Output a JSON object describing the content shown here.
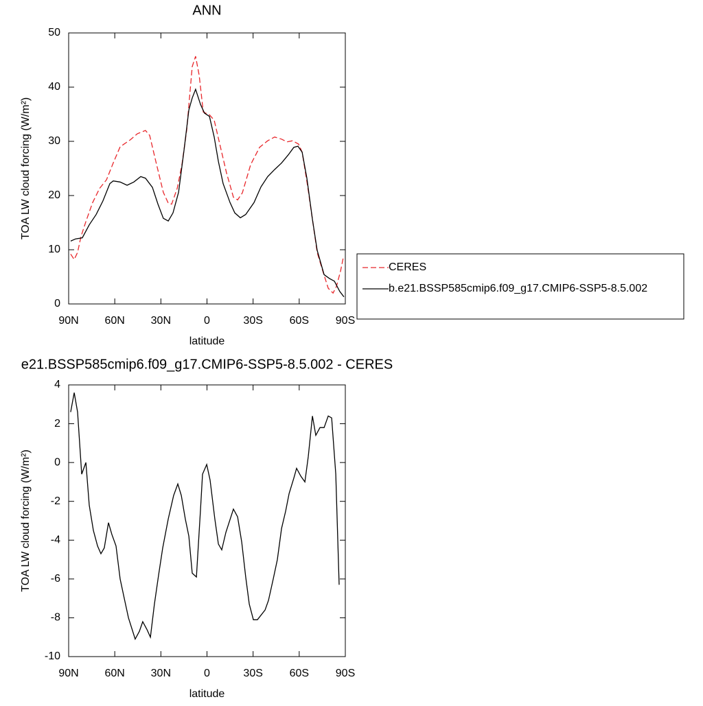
{
  "chart_data": [
    {
      "type": "line",
      "title": "ANN",
      "xlabel": "latitude",
      "ylabel": "TOA LW cloud forcing (W/m²)",
      "xlim": [
        90,
        -90
      ],
      "xticks": [
        {
          "value": 90,
          "label": "90N"
        },
        {
          "value": 60,
          "label": "60N"
        },
        {
          "value": 30,
          "label": "30N"
        },
        0,
        {
          "value": -30,
          "label": "30S"
        },
        {
          "value": -60,
          "label": "60S"
        },
        {
          "value": -90,
          "label": "90S"
        }
      ],
      "ylim": [
        0,
        50
      ],
      "yticks": [
        0,
        10,
        20,
        30,
        40,
        50
      ],
      "legend": "right",
      "series": [
        {
          "name": "CERES",
          "color": "#e8262a",
          "line_style": "dashed",
          "x": [
            88.7,
            86.4,
            84.2,
            82.0,
            78.8,
            74.4,
            69.9,
            65.4,
            61.0,
            56.5,
            49.8,
            45.3,
            40.0,
            37.3,
            32.8,
            28.4,
            25.2,
            23.0,
            19.4,
            16.3,
            13.2,
            9.6,
            7.4,
            5.1,
            2.4,
            -1.6,
            -4.7,
            -8.3,
            -12.7,
            -17.2,
            -19.9,
            -23.0,
            -28.4,
            -34.2,
            -39.5,
            -44.0,
            -48.5,
            -52.0,
            -55.6,
            -59.6,
            -61.9,
            -65.4,
            -68.6,
            -71.7,
            -75.3,
            -78.9,
            -82.0,
            -84.2,
            -86.9,
            -88.7
          ],
          "values": [
            9.2,
            8.2,
            9.5,
            12.4,
            15.2,
            18.7,
            21.3,
            22.9,
            26.0,
            29.0,
            30.3,
            31.4,
            32.0,
            31.1,
            25.7,
            20.6,
            18.6,
            18.4,
            21.3,
            25.7,
            32.0,
            43.8,
            45.7,
            42.2,
            35.4,
            34.9,
            33.9,
            29.5,
            24.2,
            19.7,
            19.2,
            20.5,
            25.7,
            28.9,
            30.1,
            30.8,
            30.4,
            29.9,
            30.1,
            29.5,
            28.0,
            21.9,
            15.6,
            9.5,
            6.1,
            2.9,
            2.0,
            3.2,
            6.1,
            8.6
          ]
        },
        {
          "name": "b.e21.BSSP585cmip6.f09_g17.CMIP6-SSP5-8.5.002",
          "color": "#000000",
          "line_style": "solid",
          "x": [
            88.7,
            85.5,
            81.1,
            76.6,
            72.1,
            67.7,
            63.2,
            61.0,
            56.5,
            52.0,
            47.6,
            43.1,
            40.0,
            35.5,
            31.9,
            28.4,
            25.2,
            22.1,
            18.5,
            15.0,
            11.8,
            9.6,
            7.4,
            4.2,
            1.6,
            -1.6,
            -4.7,
            -7.4,
            -10.5,
            -15.0,
            -18.1,
            -21.7,
            -25.2,
            -30.6,
            -35.1,
            -39.5,
            -44.0,
            -48.5,
            -52.9,
            -56.5,
            -59.2,
            -61.9,
            -65.0,
            -68.6,
            -71.7,
            -76.2,
            -79.7,
            -82.9,
            -86.4,
            -89.1
          ],
          "values": [
            11.6,
            12.0,
            12.2,
            14.6,
            16.5,
            19.0,
            22.2,
            22.7,
            22.5,
            21.9,
            22.5,
            23.5,
            23.2,
            21.5,
            18.4,
            15.8,
            15.3,
            16.8,
            20.6,
            28.2,
            35.8,
            38.0,
            39.6,
            36.8,
            35.2,
            34.6,
            30.8,
            26.3,
            22.2,
            18.7,
            16.8,
            15.9,
            16.5,
            18.7,
            21.6,
            23.5,
            24.8,
            26.0,
            27.5,
            28.9,
            29.1,
            28.0,
            23.2,
            15.6,
            9.9,
            5.4,
            4.7,
            4.2,
            2.3,
            1.3
          ]
        }
      ]
    },
    {
      "type": "line",
      "title": "e21.BSSP585cmip6.f09_g17.CMIP6-SSP5-8.5.002 - CERES",
      "xlabel": "latitude",
      "ylabel": "TOA LW cloud forcing (W/m²)",
      "xlim": [
        90,
        -90
      ],
      "xticks": [
        {
          "value": 90,
          "label": "90N"
        },
        {
          "value": 60,
          "label": "60N"
        },
        {
          "value": 30,
          "label": "30N"
        },
        0,
        {
          "value": -30,
          "label": "30S"
        },
        {
          "value": -60,
          "label": "60S"
        },
        {
          "value": -90,
          "label": "90S"
        }
      ],
      "ylim": [
        -10,
        4
      ],
      "yticks": [
        -10,
        -8,
        -6,
        -4,
        -2,
        0,
        2,
        4
      ],
      "series": [
        {
          "color": "#000000",
          "line_style": "solid",
          "x": [
            88.7,
            86.4,
            84.2,
            81.5,
            78.8,
            76.6,
            73.9,
            71.2,
            69.0,
            66.8,
            64.1,
            61.9,
            59.2,
            56.5,
            53.8,
            51.1,
            46.7,
            44.0,
            41.8,
            39.1,
            36.8,
            34.2,
            31.5,
            28.8,
            25.2,
            21.7,
            19.0,
            16.7,
            14.1,
            11.8,
            9.6,
            6.9,
            4.2,
            2.9,
            0.2,
            -2.0,
            -5.1,
            -7.4,
            -9.6,
            -12.3,
            -17.2,
            -19.9,
            -22.6,
            -25.2,
            -27.5,
            -30.2,
            -32.8,
            -37.8,
            -40.0,
            -43.1,
            -45.8,
            -48.5,
            -51.2,
            -53.4,
            -56.5,
            -58.3,
            -61.0,
            -63.7,
            -65.9,
            -68.6,
            -70.8,
            -73.5,
            -76.2,
            -78.9,
            -81.1,
            -83.8,
            -86.0
          ],
          "values": [
            2.6,
            3.6,
            2.6,
            -0.6,
            0.0,
            -2.2,
            -3.5,
            -4.3,
            -4.7,
            -4.4,
            -3.1,
            -3.7,
            -4.3,
            -6.0,
            -7.0,
            -8.0,
            -9.1,
            -8.7,
            -8.2,
            -8.6,
            -9.0,
            -7.3,
            -5.8,
            -4.4,
            -2.9,
            -1.7,
            -1.1,
            -1.7,
            -2.9,
            -3.8,
            -5.7,
            -5.9,
            -2.4,
            -0.6,
            -0.1,
            -0.9,
            -2.9,
            -4.2,
            -4.5,
            -3.6,
            -2.4,
            -2.8,
            -4.1,
            -5.9,
            -7.3,
            -8.1,
            -8.1,
            -7.6,
            -7.1,
            -6.0,
            -5.0,
            -3.4,
            -2.5,
            -1.6,
            -0.8,
            -0.3,
            -0.7,
            -1.0,
            0.3,
            2.4,
            1.4,
            1.8,
            1.8,
            2.4,
            2.3,
            -0.6,
            -6.3
          ]
        }
      ]
    }
  ]
}
